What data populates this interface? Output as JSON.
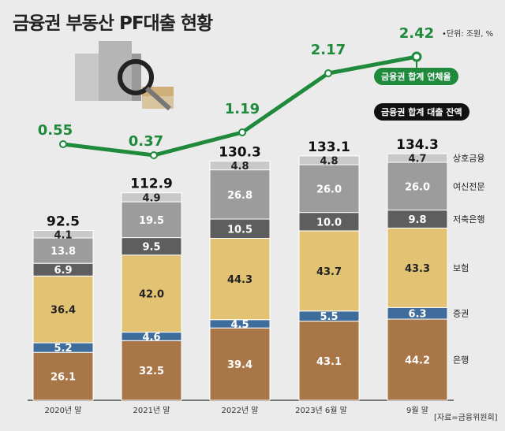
{
  "title": "금융권 부동산 PF대출 현황",
  "unit": "•단위: 조원, %",
  "source": "[자료=금융위원회]",
  "colors": {
    "은행": "#a87647",
    "증권": "#3e6d9b",
    "보험": "#e2c374",
    "저축은행": "#5e5e5e",
    "여신전문": "#9c9c9c",
    "상호금융": "#c9c9c9",
    "line": "#1f8a3c"
  },
  "chart_data": {
    "type": "bar",
    "stacked": true,
    "categories": [
      "2020년 말",
      "2021년 말",
      "2022년 말",
      "2023년  6월 말",
      "9월 말"
    ],
    "series": [
      {
        "name": "은행",
        "values": [
          26.1,
          32.5,
          39.4,
          43.1,
          44.2
        ]
      },
      {
        "name": "증권",
        "values": [
          5.2,
          4.6,
          4.5,
          5.5,
          6.3
        ]
      },
      {
        "name": "보험",
        "values": [
          36.4,
          42.0,
          44.3,
          43.7,
          43.3
        ]
      },
      {
        "name": "저축은행",
        "values": [
          6.9,
          9.5,
          10.5,
          10.0,
          9.8
        ]
      },
      {
        "name": "여신전문",
        "values": [
          13.8,
          19.5,
          26.8,
          26.0,
          26.0
        ]
      },
      {
        "name": "상호금융",
        "values": [
          4.1,
          4.9,
          4.8,
          4.8,
          4.7
        ]
      }
    ],
    "totals": [
      92.5,
      112.9,
      130.3,
      133.1,
      134.3
    ],
    "totals_label": "금융권 합계  대출 잔액",
    "line": {
      "name": "금융권 합계 연체율",
      "values": [
        0.55,
        0.37,
        1.19,
        2.17,
        2.42
      ]
    }
  }
}
